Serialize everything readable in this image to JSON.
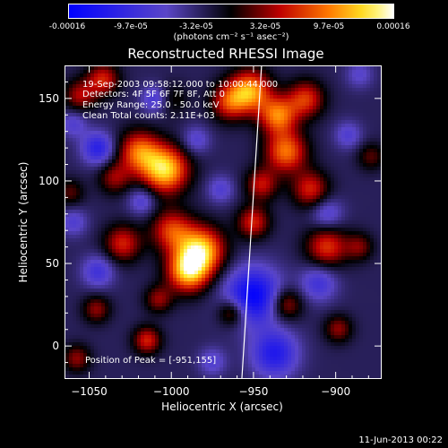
{
  "colorbar": {
    "ticks": [
      "-0.00016",
      "-9.7e-05",
      "-3.2e-05",
      "3.2e-05",
      "9.7e-05",
      "0.00016"
    ],
    "units": "(photons cm⁻² s⁻¹ asec⁻²)"
  },
  "info": {
    "line1": "19-Sep-2003 09:58:12.000 to 10:00:44.000",
    "line2": "Detectors: 4F 5F 6F 7F 8F, Att 0",
    "line3": "Energy Range: 25.0 - 50.0 keV",
    "line4": "Clean    Total counts: 2.11E+03"
  },
  "peak": "Position of Peak = [-951,155]",
  "datestamp": "11-Jun-2013 00:22",
  "chart_data": {
    "type": "heatmap",
    "title": "Reconstructed RHESSI Image",
    "xlabel": "Heliocentric X (arcsec)",
    "ylabel": "Heliocentric Y (arcsec)",
    "xlim": [
      -1065,
      -872
    ],
    "ylim": [
      -20,
      170
    ],
    "xticks": [
      -1050,
      -1000,
      -950,
      -900
    ],
    "yticks": [
      0,
      50,
      100,
      150
    ],
    "colorbar_range": [
      -0.00016,
      0.00016
    ],
    "colormap": "blue-black-red-yellow-white",
    "peak_position": [
      -951,
      155
    ],
    "limb_line": [
      [
        -957,
        -20
      ],
      [
        -945,
        170
      ]
    ],
    "sources": [
      {
        "x": -1004,
        "y": 107,
        "amp": 1.0,
        "sig": 10
      },
      {
        "x": -1020,
        "y": 118,
        "amp": 0.7,
        "sig": 9
      },
      {
        "x": -982,
        "y": 58,
        "amp": 0.95,
        "sig": 10
      },
      {
        "x": -990,
        "y": 45,
        "amp": 0.9,
        "sig": 9
      },
      {
        "x": -1000,
        "y": 70,
        "amp": 0.6,
        "sig": 9
      },
      {
        "x": -1030,
        "y": 62,
        "amp": 0.55,
        "sig": 8
      },
      {
        "x": -952,
        "y": 155,
        "amp": 0.85,
        "sig": 9
      },
      {
        "x": -935,
        "y": 140,
        "amp": 0.75,
        "sig": 8
      },
      {
        "x": -918,
        "y": 150,
        "amp": 0.6,
        "sig": 8
      },
      {
        "x": -930,
        "y": 118,
        "amp": 0.75,
        "sig": 9
      },
      {
        "x": -915,
        "y": 95,
        "amp": 0.55,
        "sig": 8
      },
      {
        "x": -945,
        "y": 98,
        "amp": 0.5,
        "sig": 7
      },
      {
        "x": -950,
        "y": 75,
        "amp": 0.55,
        "sig": 7
      },
      {
        "x": -905,
        "y": 60,
        "amp": 0.6,
        "sig": 9
      },
      {
        "x": -965,
        "y": 148,
        "amp": 0.55,
        "sig": 8
      },
      {
        "x": -1042,
        "y": 162,
        "amp": 0.55,
        "sig": 7
      },
      {
        "x": -1056,
        "y": 152,
        "amp": 0.45,
        "sig": 7
      },
      {
        "x": -1035,
        "y": 102,
        "amp": 0.4,
        "sig": 7
      },
      {
        "x": -1062,
        "y": 93,
        "amp": 0.3,
        "sig": 6
      },
      {
        "x": -1046,
        "y": 22,
        "amp": 0.4,
        "sig": 6
      },
      {
        "x": -1015,
        "y": 3,
        "amp": 0.55,
        "sig": 6
      },
      {
        "x": -1008,
        "y": 28,
        "amp": 0.4,
        "sig": 6
      },
      {
        "x": -963,
        "y": 20,
        "amp": 0.5,
        "sig": 6
      },
      {
        "x": -930,
        "y": 25,
        "amp": 0.5,
        "sig": 7
      },
      {
        "x": -898,
        "y": 10,
        "amp": 0.4,
        "sig": 6
      },
      {
        "x": -1058,
        "y": -8,
        "amp": 0.4,
        "sig": 6
      },
      {
        "x": -878,
        "y": 115,
        "amp": 0.3,
        "sig": 6
      },
      {
        "x": -885,
        "y": 60,
        "amp": 0.35,
        "sig": 6
      },
      {
        "x": -1000,
        "y": 150,
        "amp": 0.25,
        "sig": 7
      },
      {
        "x": -950,
        "y": 30,
        "amp": -0.8,
        "sig": 12
      },
      {
        "x": -937,
        "y": -5,
        "amp": -0.6,
        "sig": 10
      },
      {
        "x": -910,
        "y": 38,
        "amp": -0.4,
        "sig": 8
      },
      {
        "x": -1045,
        "y": 120,
        "amp": -0.55,
        "sig": 7
      },
      {
        "x": -1060,
        "y": 135,
        "amp": -0.3,
        "sig": 6
      },
      {
        "x": -1010,
        "y": 150,
        "amp": -0.4,
        "sig": 6
      },
      {
        "x": -1018,
        "y": 88,
        "amp": -0.35,
        "sig": 6
      },
      {
        "x": -1045,
        "y": 45,
        "amp": -0.4,
        "sig": 7
      },
      {
        "x": -985,
        "y": 125,
        "amp": -0.3,
        "sig": 6
      },
      {
        "x": -905,
        "y": 80,
        "amp": -0.35,
        "sig": 7
      },
      {
        "x": -892,
        "y": 128,
        "amp": -0.3,
        "sig": 6
      },
      {
        "x": -970,
        "y": 95,
        "amp": -0.3,
        "sig": 6
      },
      {
        "x": -885,
        "y": 165,
        "amp": -0.25,
        "sig": 6
      },
      {
        "x": -975,
        "y": -10,
        "amp": -0.3,
        "sig": 6
      },
      {
        "x": -1060,
        "y": 75,
        "amp": -0.3,
        "sig": 6
      }
    ]
  }
}
